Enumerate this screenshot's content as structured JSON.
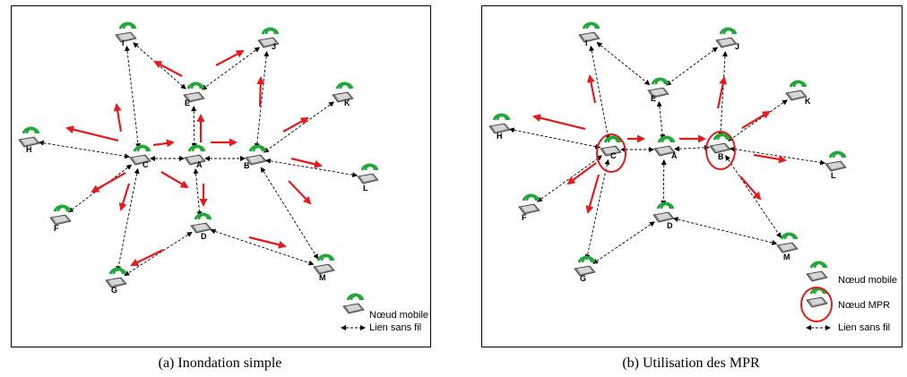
{
  "panel_a": {
    "caption": "(a)  Inondation simple",
    "nodes": [
      "I",
      "J",
      "E",
      "H",
      "C",
      "A",
      "B",
      "K",
      "L",
      "F",
      "D",
      "G",
      "M"
    ],
    "legend": {
      "mobile_node": "Nœud mobile",
      "wireless_link": "Lien sans fil"
    }
  },
  "panel_b": {
    "caption": "(b)  Utilisation des MPR",
    "nodes": [
      "I",
      "J",
      "E",
      "H",
      "C",
      "A",
      "B",
      "K",
      "L",
      "F",
      "D",
      "G",
      "M"
    ],
    "mpr_nodes": [
      "C",
      "B"
    ],
    "legend": {
      "mobile_node": "Nœud mobile",
      "mpr_node": "Nœud MPR",
      "wireless_link": "Lien sans fil"
    }
  },
  "colors": {
    "arrow": "#e41a1c",
    "antenna": "#22a83a",
    "link": "#000000",
    "mpr_circle": "#e41a1c"
  },
  "icons": {
    "node": "mobile-device-icon",
    "link": "dashed-double-arrow-icon"
  }
}
